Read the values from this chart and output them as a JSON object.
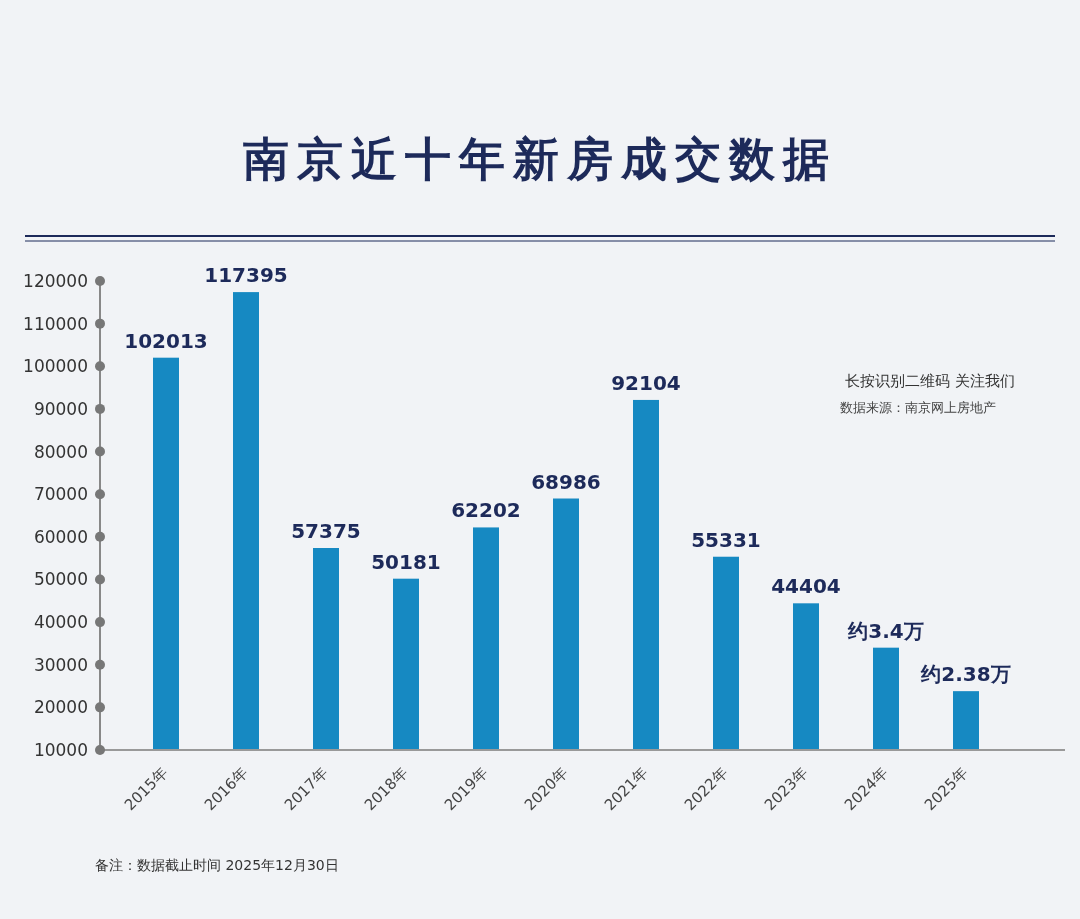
{
  "chart_data": {
    "type": "bar",
    "title": "南京近十年新房成交数据",
    "categories": [
      "2015年",
      "2016年",
      "2017年",
      "2018年",
      "2019年",
      "2020年",
      "2021年",
      "2022年",
      "2023年",
      "2024年",
      "2025年"
    ],
    "values": [
      102013,
      117395,
      57375,
      50181,
      62202,
      68986,
      92104,
      55331,
      44404,
      34000,
      23800
    ],
    "value_labels": [
      "102013",
      "117395",
      "57375",
      "50181",
      "62202",
      "68986",
      "92104",
      "55331",
      "44404",
      "约3.4万",
      "约2.38万"
    ],
    "color": "#1689c2",
    "ylim": [
      10000,
      120000
    ],
    "yticks": [
      10000,
      20000,
      30000,
      40000,
      50000,
      60000,
      70000,
      80000,
      90000,
      100000,
      110000,
      120000
    ],
    "grid": false,
    "annotations": [
      "长按识别二维码 关注我们",
      "数据来源：南京网上房地产",
      "备注：数据截止时间 2025年12月30日"
    ]
  }
}
